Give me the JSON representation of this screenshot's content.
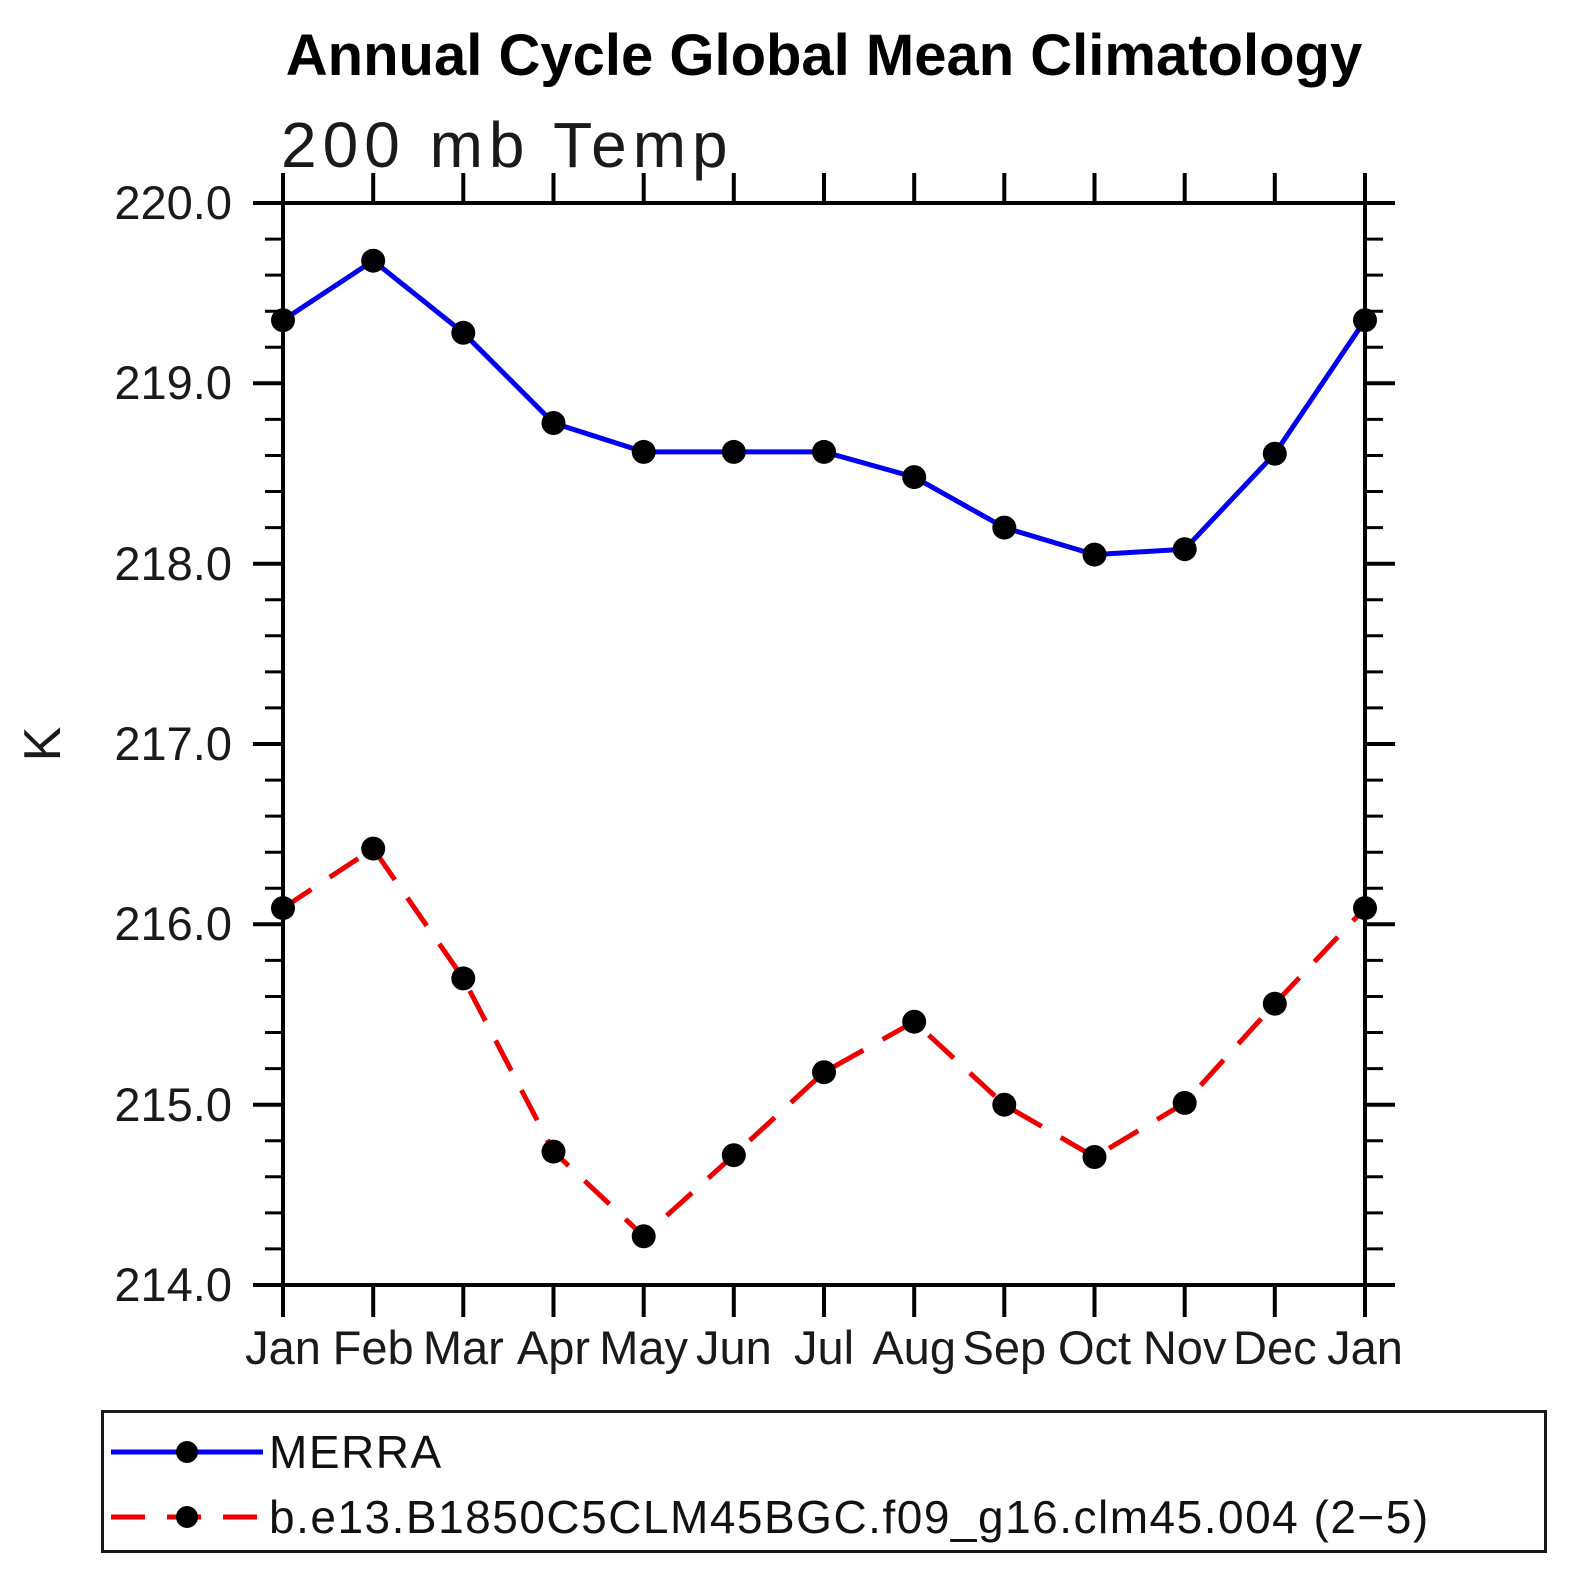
{
  "title": "Annual Cycle Global Mean Climatology",
  "subtitle": "200 mb Temp",
  "ylabel": "K",
  "colors": {
    "axis": "#000000",
    "text": "#1a1a1a",
    "merra_line": "#0000EE",
    "model_line": "#EE0000",
    "marker": "#000000"
  },
  "chart_data": {
    "type": "line",
    "categories": [
      "Jan",
      "Feb",
      "Mar",
      "Apr",
      "May",
      "Jun",
      "Jul",
      "Aug",
      "Sep",
      "Oct",
      "Nov",
      "Dec",
      "Jan"
    ],
    "y_tick_labels": [
      "220.0",
      "219.0",
      "218.0",
      "217.0",
      "216.0",
      "215.0",
      "214.0"
    ],
    "ylim": [
      214.0,
      220.0
    ],
    "y_major_step": 1.0,
    "y_minor_step": 0.2,
    "grid": "off",
    "legend_position": "bottom-left-box",
    "series": [
      {
        "name": "MERRA",
        "color": "#0000EE",
        "style": "solid",
        "marker": "filled-circle",
        "marker_color": "#000000",
        "values": [
          219.35,
          219.68,
          219.28,
          218.78,
          218.62,
          218.62,
          218.62,
          218.48,
          218.2,
          218.05,
          218.08,
          218.61,
          219.35
        ]
      },
      {
        "name": "b.e13.B1850C5CLM45BGC.f09_g16.clm45.004 (2−5)",
        "color": "#EE0000",
        "style": "dashed",
        "marker": "filled-circle",
        "marker_color": "#000000",
        "values": [
          216.09,
          216.42,
          215.7,
          214.74,
          214.27,
          214.72,
          215.18,
          215.46,
          215.0,
          214.71,
          215.01,
          215.56,
          216.09
        ]
      }
    ]
  }
}
